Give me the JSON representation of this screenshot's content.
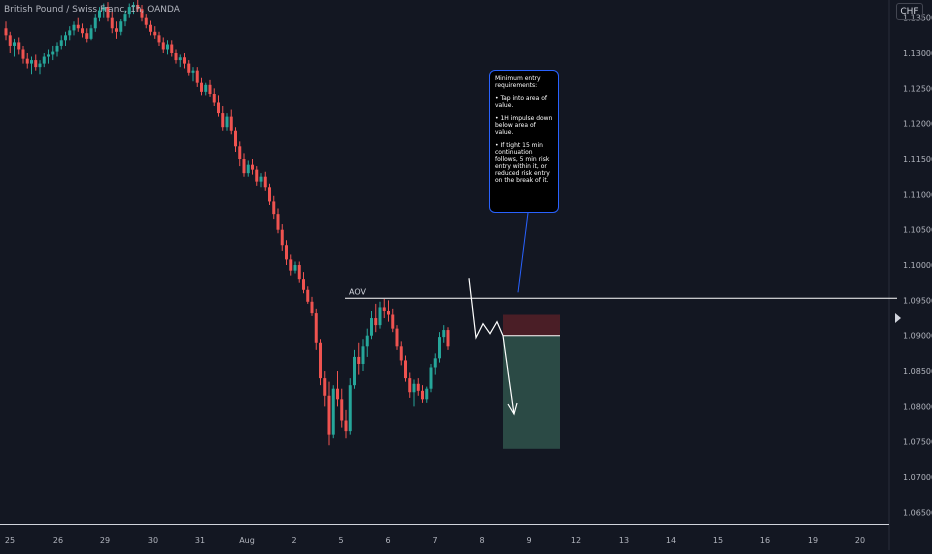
{
  "header": {
    "symbol": "British Pound / Swiss Franc, 1h, OANDA",
    "currency": "CHF"
  },
  "annotation": {
    "aov_label": "AOV",
    "note_lines": [
      "Minimum entry requirements:",
      "• Tap into area of value.",
      "• 1H impulse down below area of value.",
      "• If tight 15 min continuation follows, 5 min risk entry within it, or reduced risk entry on the break of it."
    ]
  },
  "colors": {
    "background": "#131722",
    "up": "#26a69a",
    "down": "#ef5350",
    "aov_line": "#ffffff",
    "stop_zone": "#4a1e26",
    "target_zone": "#2b4a45",
    "callout_border": "#2962ff"
  },
  "chart_data": {
    "type": "candlestick",
    "title": "British Pound / Swiss Franc, 1h, OANDA",
    "x_ticks": [
      "25",
      "26",
      "29",
      "30",
      "31",
      "Aug",
      "2",
      "5",
      "6",
      "7",
      "8",
      "9",
      "12",
      "13",
      "14",
      "15",
      "16",
      "19",
      "20"
    ],
    "y_ticks": [
      "1.06500",
      "1.07000",
      "1.07500",
      "1.08000",
      "1.08500",
      "1.09000",
      "1.09500",
      "1.10000",
      "1.10500",
      "1.11000",
      "1.11500",
      "1.12000",
      "1.12500",
      "1.13000",
      "1.13500"
    ],
    "ylim": [
      1.0635,
      1.1375
    ],
    "series": [
      {
        "ohlc": [
          [
            1.1335,
            1.1345,
            1.1318,
            1.1325
          ],
          [
            1.1325,
            1.133,
            1.13,
            1.131
          ],
          [
            1.131,
            1.132,
            1.1295,
            1.1315
          ],
          [
            1.1315,
            1.1322,
            1.1298,
            1.1305
          ],
          [
            1.1305,
            1.131,
            1.1285,
            1.1292
          ],
          [
            1.1292,
            1.13,
            1.1278,
            1.1285
          ],
          [
            1.1285,
            1.1295,
            1.127,
            1.129
          ],
          [
            1.129,
            1.1298,
            1.1275,
            1.128
          ],
          [
            1.128,
            1.129,
            1.127,
            1.1285
          ],
          [
            1.1285,
            1.13,
            1.128,
            1.1295
          ],
          [
            1.1295,
            1.1305,
            1.1285,
            1.1298
          ],
          [
            1.1298,
            1.131,
            1.129,
            1.1302
          ],
          [
            1.1302,
            1.1315,
            1.1295,
            1.131
          ],
          [
            1.131,
            1.1325,
            1.1305,
            1.1318
          ],
          [
            1.1318,
            1.133,
            1.131,
            1.1325
          ],
          [
            1.1325,
            1.1338,
            1.1318,
            1.1332
          ],
          [
            1.1332,
            1.1345,
            1.1325,
            1.134
          ],
          [
            1.134,
            1.135,
            1.133,
            1.1335
          ],
          [
            1.1335,
            1.1342,
            1.1322,
            1.1328
          ],
          [
            1.1328,
            1.1335,
            1.1315,
            1.132
          ],
          [
            1.132,
            1.134,
            1.1318,
            1.1335
          ],
          [
            1.1335,
            1.1355,
            1.133,
            1.135
          ],
          [
            1.135,
            1.1365,
            1.1345,
            1.136
          ],
          [
            1.136,
            1.137,
            1.135,
            1.1365
          ],
          [
            1.1365,
            1.1372,
            1.1345,
            1.135
          ],
          [
            1.135,
            1.1358,
            1.1328,
            1.1335
          ],
          [
            1.1335,
            1.1345,
            1.132,
            1.133
          ],
          [
            1.133,
            1.1348,
            1.1325,
            1.1345
          ],
          [
            1.1345,
            1.136,
            1.1338,
            1.1355
          ],
          [
            1.1355,
            1.137,
            1.135,
            1.1365
          ],
          [
            1.1365,
            1.1372,
            1.1355,
            1.1368
          ],
          [
            1.1368,
            1.1375,
            1.1358,
            1.1362
          ],
          [
            1.1362,
            1.1368,
            1.1345,
            1.135
          ],
          [
            1.135,
            1.1355,
            1.1335,
            1.134
          ],
          [
            1.134,
            1.1346,
            1.1325,
            1.133
          ],
          [
            1.133,
            1.1338,
            1.132,
            1.1325
          ],
          [
            1.1325,
            1.133,
            1.131,
            1.1315
          ],
          [
            1.1315,
            1.1322,
            1.13,
            1.1305
          ],
          [
            1.1305,
            1.1318,
            1.1298,
            1.1312
          ],
          [
            1.1312,
            1.1318,
            1.1295,
            1.13
          ],
          [
            1.13,
            1.1305,
            1.1285,
            1.129
          ],
          [
            1.129,
            1.1298,
            1.128,
            1.1294
          ],
          [
            1.1294,
            1.13,
            1.1278,
            1.1285
          ],
          [
            1.1285,
            1.129,
            1.1268,
            1.1272
          ],
          [
            1.1272,
            1.128,
            1.126,
            1.1275
          ],
          [
            1.1275,
            1.128,
            1.1252,
            1.1258
          ],
          [
            1.1258,
            1.1265,
            1.124,
            1.1245
          ],
          [
            1.1245,
            1.1258,
            1.124,
            1.1255
          ],
          [
            1.1255,
            1.1262,
            1.1238,
            1.1242
          ],
          [
            1.1242,
            1.125,
            1.1225,
            1.123
          ],
          [
            1.123,
            1.124,
            1.121,
            1.1215
          ],
          [
            1.1215,
            1.1225,
            1.119,
            1.1195
          ],
          [
            1.1195,
            1.1215,
            1.119,
            1.121
          ],
          [
            1.121,
            1.122,
            1.1185,
            1.119
          ],
          [
            1.119,
            1.1195,
            1.116,
            1.1168
          ],
          [
            1.1168,
            1.1175,
            1.114,
            1.115
          ],
          [
            1.115,
            1.1158,
            1.1125,
            1.113
          ],
          [
            1.113,
            1.1148,
            1.1125,
            1.1142
          ],
          [
            1.1142,
            1.115,
            1.1128,
            1.1135
          ],
          [
            1.1135,
            1.114,
            1.1112,
            1.1118
          ],
          [
            1.1118,
            1.113,
            1.111,
            1.1125
          ],
          [
            1.1125,
            1.1132,
            1.1105,
            1.111
          ],
          [
            1.111,
            1.1115,
            1.1085,
            1.109
          ],
          [
            1.109,
            1.1098,
            1.1065,
            1.1072
          ],
          [
            1.1072,
            1.108,
            1.1045,
            1.105
          ],
          [
            1.105,
            1.1058,
            1.102,
            1.1028
          ],
          [
            1.1028,
            1.1035,
            1.1,
            1.1008
          ],
          [
            1.1008,
            1.1015,
            1.0985,
            1.0992
          ],
          [
            1.0992,
            1.1005,
            1.0988,
            1.1
          ],
          [
            1.1,
            1.1005,
            1.0975,
            1.098
          ],
          [
            1.098,
            1.099,
            1.096,
            1.0965
          ],
          [
            1.0965,
            1.097,
            1.0945,
            1.0948
          ],
          [
            1.0948,
            1.0955,
            1.0928,
            1.0932
          ],
          [
            1.0932,
            1.0938,
            1.088,
            1.089
          ],
          [
            1.089,
            1.0895,
            1.083,
            1.084
          ],
          [
            1.084,
            1.085,
            1.08,
            1.0815
          ],
          [
            1.0815,
            1.0835,
            1.0745,
            1.076
          ],
          [
            1.076,
            1.083,
            1.0755,
            1.0825
          ],
          [
            1.0825,
            1.085,
            1.08,
            1.081
          ],
          [
            1.081,
            1.0825,
            1.077,
            1.078
          ],
          [
            1.078,
            1.0795,
            1.0755,
            1.0765
          ],
          [
            1.0765,
            1.084,
            1.076,
            1.083
          ],
          [
            1.083,
            1.088,
            1.0825,
            1.087
          ],
          [
            1.087,
            1.089,
            1.0845,
            1.086
          ],
          [
            1.086,
            1.0895,
            1.085,
            1.0885
          ],
          [
            1.0885,
            1.091,
            1.087,
            1.09
          ],
          [
            1.09,
            1.0935,
            1.0895,
            1.0925
          ],
          [
            1.0925,
            1.0945,
            1.0905,
            1.0915
          ],
          [
            1.0915,
            1.0948,
            1.091,
            1.094
          ],
          [
            1.094,
            1.0952,
            1.0925,
            1.0935
          ],
          [
            1.0935,
            1.095,
            1.092,
            1.093
          ],
          [
            1.093,
            1.0938,
            1.0905,
            1.091
          ],
          [
            1.091,
            1.0915,
            1.088,
            1.0885
          ],
          [
            1.0885,
            1.0892,
            1.0858,
            1.0865
          ],
          [
            1.0865,
            1.0872,
            1.0835,
            1.084
          ],
          [
            1.084,
            1.0848,
            1.0812,
            1.082
          ],
          [
            1.082,
            1.0838,
            1.08,
            1.0832
          ],
          [
            1.0832,
            1.084,
            1.0815,
            1.0822
          ],
          [
            1.0822,
            1.083,
            1.0805,
            1.081
          ],
          [
            1.081,
            1.0828,
            1.0805,
            1.0825
          ],
          [
            1.0825,
            1.086,
            1.082,
            1.0855
          ],
          [
            1.0855,
            1.0875,
            1.0845,
            1.0868
          ],
          [
            1.0868,
            1.0905,
            1.0862,
            1.0898
          ],
          [
            1.0898,
            1.0915,
            1.089,
            1.0908
          ],
          [
            1.0908,
            1.0912,
            1.088,
            1.0885
          ]
        ]
      }
    ],
    "levels": {
      "aov": 1.0953,
      "entry": 1.09,
      "stop": 1.093,
      "target": 1.074
    }
  }
}
